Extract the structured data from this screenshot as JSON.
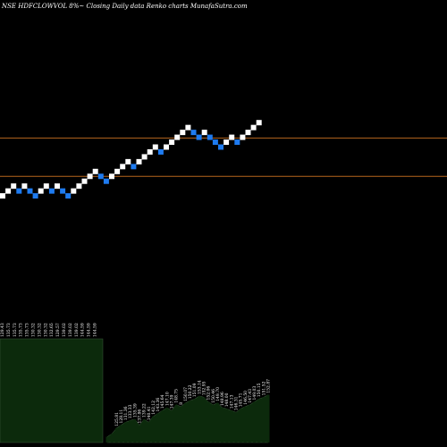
{
  "title": "NSE HDFCLOWVOL 8%~  Closing Daily data  Renko  charts MunafaSutra.com",
  "colors": {
    "background": "#000000",
    "up_brick": "#ffffff",
    "down_brick": "#1e7bf0",
    "reference_line": "#b5651d",
    "volume_fill": "#0c2a0c",
    "volume_stroke": "#3a5a3a"
  },
  "chart_data": {
    "type": "renko",
    "title": "NSE HDFCLOWVOL 8%~  Closing Daily data  Renko  charts MunafaSutra.com",
    "reference_lines": [
      145.4,
      139.9
    ],
    "brick_size": 0.7,
    "bricks": [
      {
        "close": 137.1,
        "dir": "up"
      },
      {
        "close": 137.8,
        "dir": "up"
      },
      {
        "close": 138.5,
        "dir": "up"
      },
      {
        "close": 137.8,
        "dir": "down"
      },
      {
        "close": 138.5,
        "dir": "up"
      },
      {
        "close": 137.8,
        "dir": "down"
      },
      {
        "close": 137.1,
        "dir": "down"
      },
      {
        "close": 137.8,
        "dir": "up"
      },
      {
        "close": 138.5,
        "dir": "up"
      },
      {
        "close": 137.8,
        "dir": "down"
      },
      {
        "close": 138.5,
        "dir": "up"
      },
      {
        "close": 137.8,
        "dir": "down"
      },
      {
        "close": 137.1,
        "dir": "down"
      },
      {
        "close": 137.8,
        "dir": "up"
      },
      {
        "close": 138.5,
        "dir": "up"
      },
      {
        "close": 139.2,
        "dir": "up"
      },
      {
        "close": 139.9,
        "dir": "up"
      },
      {
        "close": 140.6,
        "dir": "up"
      },
      {
        "close": 139.9,
        "dir": "down"
      },
      {
        "close": 139.2,
        "dir": "down"
      },
      {
        "close": 139.9,
        "dir": "up"
      },
      {
        "close": 140.6,
        "dir": "up"
      },
      {
        "close": 141.3,
        "dir": "up"
      },
      {
        "close": 142.0,
        "dir": "up"
      },
      {
        "close": 141.3,
        "dir": "down"
      },
      {
        "close": 142.0,
        "dir": "up"
      },
      {
        "close": 142.7,
        "dir": "up"
      },
      {
        "close": 143.4,
        "dir": "up"
      },
      {
        "close": 144.1,
        "dir": "up"
      },
      {
        "close": 143.4,
        "dir": "down"
      },
      {
        "close": 144.1,
        "dir": "up"
      },
      {
        "close": 144.8,
        "dir": "up"
      },
      {
        "close": 145.5,
        "dir": "up"
      },
      {
        "close": 146.2,
        "dir": "up"
      },
      {
        "close": 146.9,
        "dir": "up"
      },
      {
        "close": 146.2,
        "dir": "down"
      },
      {
        "close": 145.5,
        "dir": "down"
      },
      {
        "close": 146.2,
        "dir": "up"
      },
      {
        "close": 145.5,
        "dir": "down"
      },
      {
        "close": 144.8,
        "dir": "down"
      },
      {
        "close": 144.1,
        "dir": "down"
      },
      {
        "close": 144.8,
        "dir": "up"
      },
      {
        "close": 145.5,
        "dir": "up"
      },
      {
        "close": 144.8,
        "dir": "down"
      },
      {
        "close": 145.5,
        "dir": "up"
      },
      {
        "close": 146.2,
        "dir": "up"
      },
      {
        "close": 146.9,
        "dir": "up"
      },
      {
        "close": 147.6,
        "dir": "up"
      }
    ],
    "volume_block_labels": [
      "129.43",
      "135.73",
      "135.73",
      "135.73",
      "135.73",
      "130.32",
      "130.32",
      "130.32",
      "132.65",
      "129.57",
      "139.02",
      "139.02",
      "139.02",
      "144.59",
      "144.59",
      "144.59"
    ],
    "volume_bars": [
      {
        "label": "",
        "value": 0.1
      },
      {
        "label": "",
        "value": 0.15
      },
      {
        "label": "125.81",
        "value": 0.25
      },
      {
        "label": "128.11",
        "value": 0.3
      },
      {
        "label": "131.36",
        "value": 0.35
      },
      {
        "label": "133.33",
        "value": 0.38
      },
      {
        "label": "135.39",
        "value": 0.4
      },
      {
        "label": "137.86",
        "value": 0.3
      },
      {
        "label": "139.22",
        "value": 0.4
      },
      {
        "label": "140.41",
        "value": 0.35
      },
      {
        "label": "142.12",
        "value": 0.45
      },
      {
        "label": "143.36",
        "value": 0.5
      },
      {
        "label": "145.64",
        "value": 0.55
      },
      {
        "label": "147.10",
        "value": 0.6
      },
      {
        "label": "147.39",
        "value": 0.55
      },
      {
        "label": "148.75",
        "value": 0.65
      },
      {
        "label": "8",
        "value": 0.62
      },
      {
        "label": "150.07",
        "value": 0.68
      },
      {
        "label": "150.22",
        "value": 0.72
      },
      {
        "label": "151.09",
        "value": 0.75
      },
      {
        "label": "153.14",
        "value": 0.8
      },
      {
        "label": "152.95",
        "value": 0.78
      },
      {
        "label": "152.06",
        "value": 0.7
      },
      {
        "label": "150.46",
        "value": 0.65
      },
      {
        "label": "149.70",
        "value": 0.68
      },
      {
        "label": "148.96",
        "value": 0.6
      },
      {
        "label": "148.00",
        "value": 0.58
      },
      {
        "label": "147.13",
        "value": 0.55
      },
      {
        "label": "146.31",
        "value": 0.52
      },
      {
        "label": "145.71",
        "value": 0.58
      },
      {
        "label": "146.50",
        "value": 0.62
      },
      {
        "label": "147.43",
        "value": 0.65
      },
      {
        "label": "149.03",
        "value": 0.7
      },
      {
        "label": "150.15",
        "value": 0.75
      },
      {
        "label": "151.52",
        "value": 0.78
      },
      {
        "label": "152.87",
        "value": 0.82
      }
    ]
  }
}
